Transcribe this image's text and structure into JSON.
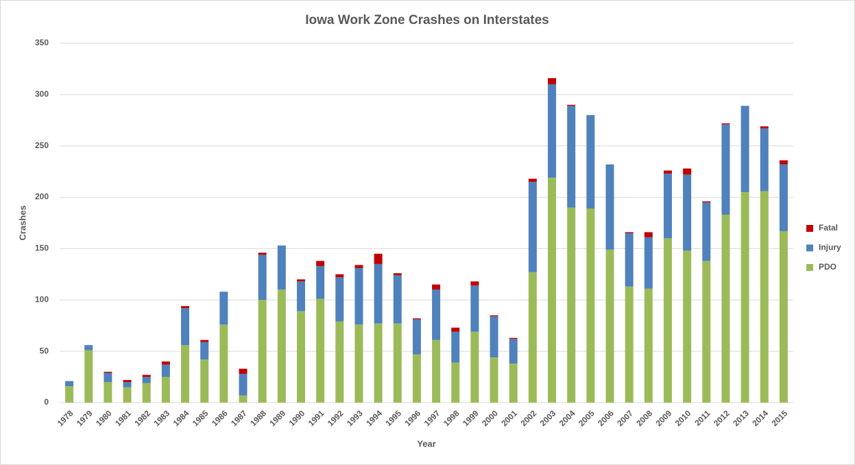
{
  "chart_data": {
    "type": "stacked_bar",
    "title": "Iowa Work Zone Crashes on Interstates",
    "x_label": "Year",
    "y_label": "Crashes",
    "categories": [
      "1978",
      "1979",
      "1980",
      "1981",
      "1982",
      "1983",
      "1984",
      "1985",
      "1986",
      "1987",
      "1988",
      "1989",
      "1990",
      "1991",
      "1992",
      "1993",
      "1994",
      "1995",
      "1996",
      "1997",
      "1998",
      "1999",
      "2000",
      "2001",
      "2002",
      "2003",
      "2004",
      "2005",
      "2006",
      "2007",
      "2008",
      "2009",
      "2010",
      "2011",
      "2012",
      "2013",
      "2014",
      "2015"
    ],
    "series": [
      {
        "name": "PDO",
        "color": "#9bbb59",
        "values": [
          16,
          51,
          20,
          15,
          19,
          25,
          56,
          42,
          76,
          7,
          100,
          110,
          89,
          101,
          79,
          76,
          77,
          77,
          47,
          61,
          39,
          69,
          44,
          38,
          127,
          219,
          190,
          189,
          149,
          113,
          111,
          160,
          148,
          138,
          183,
          205,
          206,
          167
        ]
      },
      {
        "name": "Injury",
        "color": "#4f81bd",
        "values": [
          5,
          5,
          9,
          5,
          6,
          12,
          36,
          17,
          32,
          21,
          44,
          43,
          29,
          32,
          43,
          55,
          58,
          47,
          34,
          49,
          30,
          45,
          40,
          24,
          88,
          91,
          99,
          91,
          83,
          52,
          50,
          63,
          74,
          57,
          88,
          84,
          61,
          65
        ]
      },
      {
        "name": "Fatal",
        "color": "#c00000",
        "values": [
          0,
          0,
          1,
          2,
          2,
          3,
          2,
          2,
          0,
          5,
          2,
          0,
          2,
          5,
          3,
          3,
          10,
          2,
          1,
          5,
          4,
          4,
          1,
          1,
          3,
          6,
          1,
          0,
          0,
          1,
          5,
          3,
          6,
          1,
          1,
          0,
          2,
          4
        ]
      }
    ],
    "ylim": [
      0,
      350
    ],
    "yticks": [
      0,
      50,
      100,
      150,
      200,
      250,
      300,
      350
    ],
    "grid": true,
    "legend": "right"
  }
}
